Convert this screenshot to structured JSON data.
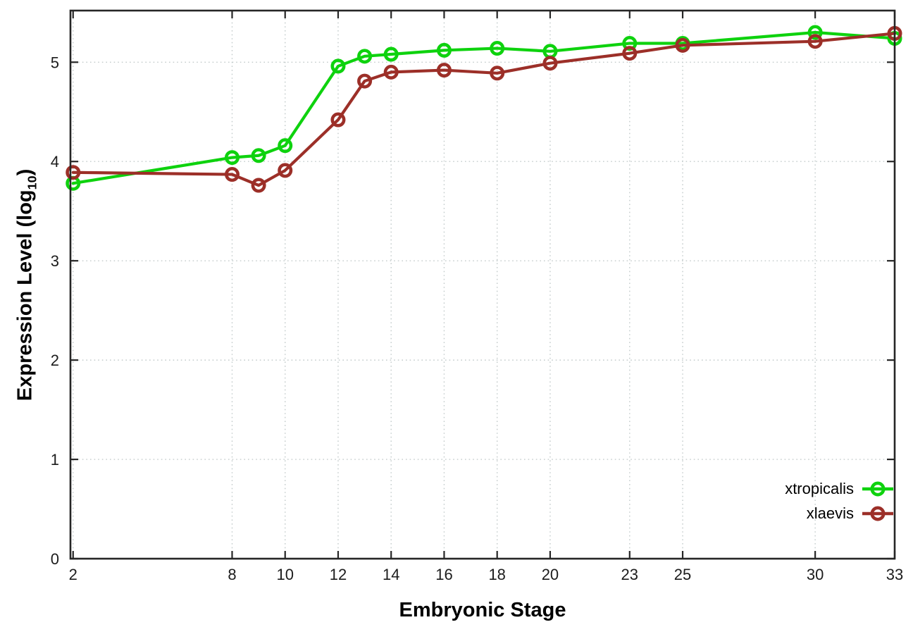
{
  "figure": {
    "background": "#ffffff"
  },
  "chart_data": {
    "type": "line",
    "title": "",
    "xlabel": "Embryonic Stage",
    "ylabel": "Expression Level (log10)",
    "ylabel_rich": {
      "prefix": "Expression Level (log",
      "subscript": "10",
      "suffix": ")"
    },
    "x": [
      2,
      8,
      9,
      10,
      12,
      13,
      14,
      16,
      18,
      20,
      23,
      25,
      30,
      33
    ],
    "series": [
      {
        "name": "xtropicalis",
        "color": "#0ed20e",
        "values": [
          3.78,
          4.04,
          4.06,
          4.16,
          4.96,
          5.06,
          5.08,
          5.12,
          5.14,
          5.11,
          5.19,
          5.19,
          5.3,
          5.24
        ]
      },
      {
        "name": "xlaevis",
        "color": "#9c2f28",
        "values": [
          3.89,
          3.87,
          3.76,
          3.91,
          4.42,
          4.81,
          4.9,
          4.92,
          4.89,
          4.99,
          5.09,
          5.17,
          5.21,
          5.29
        ]
      }
    ],
    "xticks": {
      "values": [
        2,
        8,
        10,
        12,
        14,
        16,
        18,
        20,
        23,
        25,
        30,
        33
      ],
      "labels": [
        "2",
        "8",
        "10",
        "12",
        "14",
        "16",
        "18",
        "20",
        "23",
        "25",
        "30",
        "33"
      ]
    },
    "yticks": {
      "values": [
        0,
        1,
        2,
        3,
        4,
        5
      ],
      "labels": [
        "0",
        "1",
        "2",
        "3",
        "4",
        "5"
      ]
    },
    "xlim": [
      1.9,
      33
    ],
    "ylim": [
      0,
      5.52
    ],
    "grid": true,
    "grid_style": "dotted",
    "gridline_color": "#c3cbcb",
    "border_color": "#262626",
    "tick_label_color": "#1c1c1c",
    "marker": "open-circle",
    "legend_position": "inside-bottom-right"
  }
}
